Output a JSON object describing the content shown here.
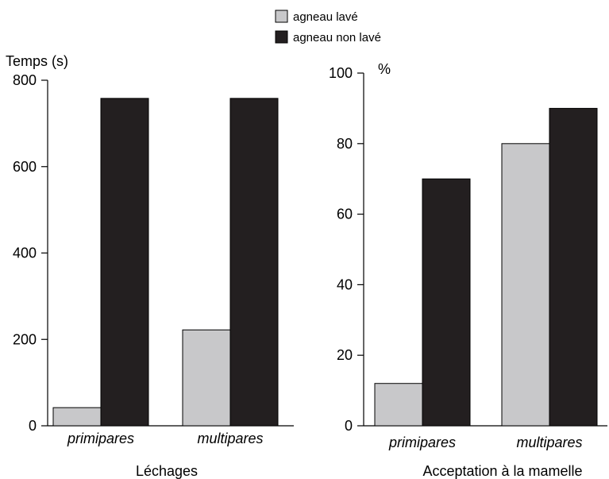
{
  "legend": {
    "items": [
      {
        "label": "agneau lavé",
        "color": "#c8c8ca"
      },
      {
        "label": "agneau non lavé",
        "color": "#231f20"
      }
    ]
  },
  "chart_data": [
    {
      "type": "bar",
      "title": "Léchages",
      "ylabel": "Temps (s)",
      "categories": [
        "primipares",
        "multipares"
      ],
      "ylim": [
        0,
        800
      ],
      "yticks": [
        0,
        200,
        400,
        600,
        800
      ],
      "series": [
        {
          "name": "agneau lavé",
          "values": [
            42,
            222
          ],
          "color": "#c8c8ca"
        },
        {
          "name": "agneau non lavé",
          "values": [
            758,
            758
          ],
          "color": "#231f20"
        }
      ],
      "grid": false
    },
    {
      "type": "bar",
      "title": "Acceptation à la mamelle",
      "ylabel": "%",
      "categories": [
        "primipares",
        "multipares"
      ],
      "ylim": [
        0,
        100
      ],
      "yticks": [
        0,
        20,
        40,
        60,
        80,
        100
      ],
      "series": [
        {
          "name": "agneau lavé",
          "values": [
            12,
            80
          ],
          "color": "#c8c8ca"
        },
        {
          "name": "agneau non lavé",
          "values": [
            70,
            90
          ],
          "color": "#231f20"
        }
      ],
      "grid": false
    }
  ]
}
